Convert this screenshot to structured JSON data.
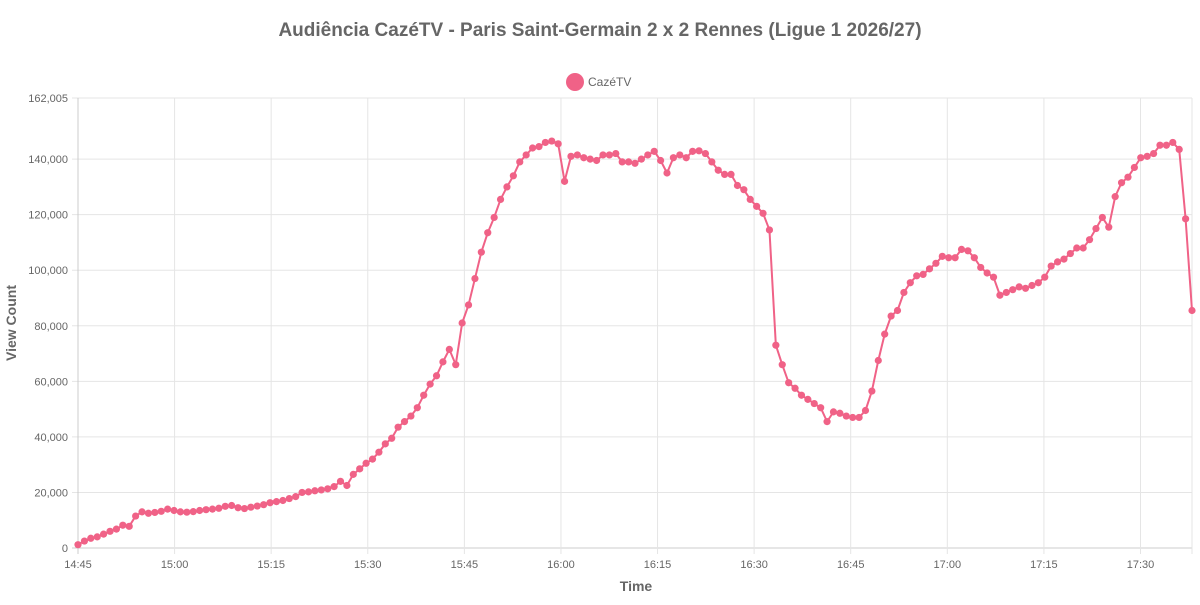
{
  "chart_data": {
    "type": "line",
    "title": "Audiência CazéTV - Paris Saint-Germain 2 x 2 Rennes (Ligue 1 2026/27)",
    "xlabel": "Time",
    "ylabel": "View Count",
    "ylim": [
      0,
      162005
    ],
    "y_ticks": [
      "0",
      "20,000",
      "40,000",
      "60,000",
      "80,000",
      "100,000",
      "120,000",
      "140,000",
      "162,005"
    ],
    "x_ticks": [
      "14:45",
      "15:00",
      "15:15",
      "15:30",
      "15:45",
      "16:00",
      "16:15",
      "16:30",
      "16:45",
      "17:00",
      "17:15",
      "17:30"
    ],
    "x_start_time": "14:45",
    "x_end_time": "17:38",
    "grid": true,
    "legend_position": "top-center",
    "series": [
      {
        "name": "CazéTV",
        "color": "#f06287",
        "values": [
          1200,
          2500,
          3500,
          4000,
          5000,
          6000,
          6800,
          8200,
          7800,
          11500,
          13000,
          12500,
          12800,
          13200,
          14000,
          13500,
          13000,
          12900,
          13100,
          13500,
          13800,
          14000,
          14300,
          15000,
          15300,
          14500,
          14200,
          14700,
          15100,
          15600,
          16300,
          16700,
          17100,
          17800,
          18500,
          20000,
          20200,
          20600,
          20900,
          21300,
          22100,
          24000,
          22500,
          26500,
          28500,
          30500,
          32000,
          34500,
          37500,
          39500,
          43500,
          45500,
          47500,
          50500,
          55000,
          59000,
          62000,
          67000,
          71500,
          66000,
          81000,
          87500,
          97000,
          106500,
          113500,
          119000,
          125500,
          130000,
          134000,
          139000,
          141500,
          144000,
          144500,
          146000,
          146500,
          145500,
          132000,
          141000,
          141500,
          140500,
          140000,
          139500,
          141500,
          141500,
          142000,
          139000,
          139000,
          138500,
          140000,
          141500,
          142800,
          139500,
          135000,
          140500,
          141500,
          140500,
          142800,
          143000,
          142000,
          139000,
          136000,
          134500,
          134500,
          130500,
          129000,
          125500,
          123000,
          120500,
          114500,
          73000,
          66000,
          59500,
          57500,
          55000,
          53500,
          52000,
          50500,
          45500,
          49000,
          48500,
          47500,
          47000,
          47000,
          49500,
          56500,
          67500,
          77000,
          83500,
          85500,
          92000,
          95500,
          98000,
          98500,
          100500,
          102500,
          105000,
          104500,
          104500,
          107500,
          107000,
          104500,
          101000,
          99000,
          97500,
          91000,
          92000,
          93000,
          94000,
          93500,
          94500,
          95500,
          97500,
          101500,
          103000,
          104000,
          106000,
          108000,
          108000,
          111000,
          115000,
          119000,
          115500,
          126500,
          131500,
          133500,
          137000,
          140500,
          141000,
          142000,
          145000,
          145000,
          146000,
          143500,
          118500,
          85500
        ]
      }
    ]
  }
}
